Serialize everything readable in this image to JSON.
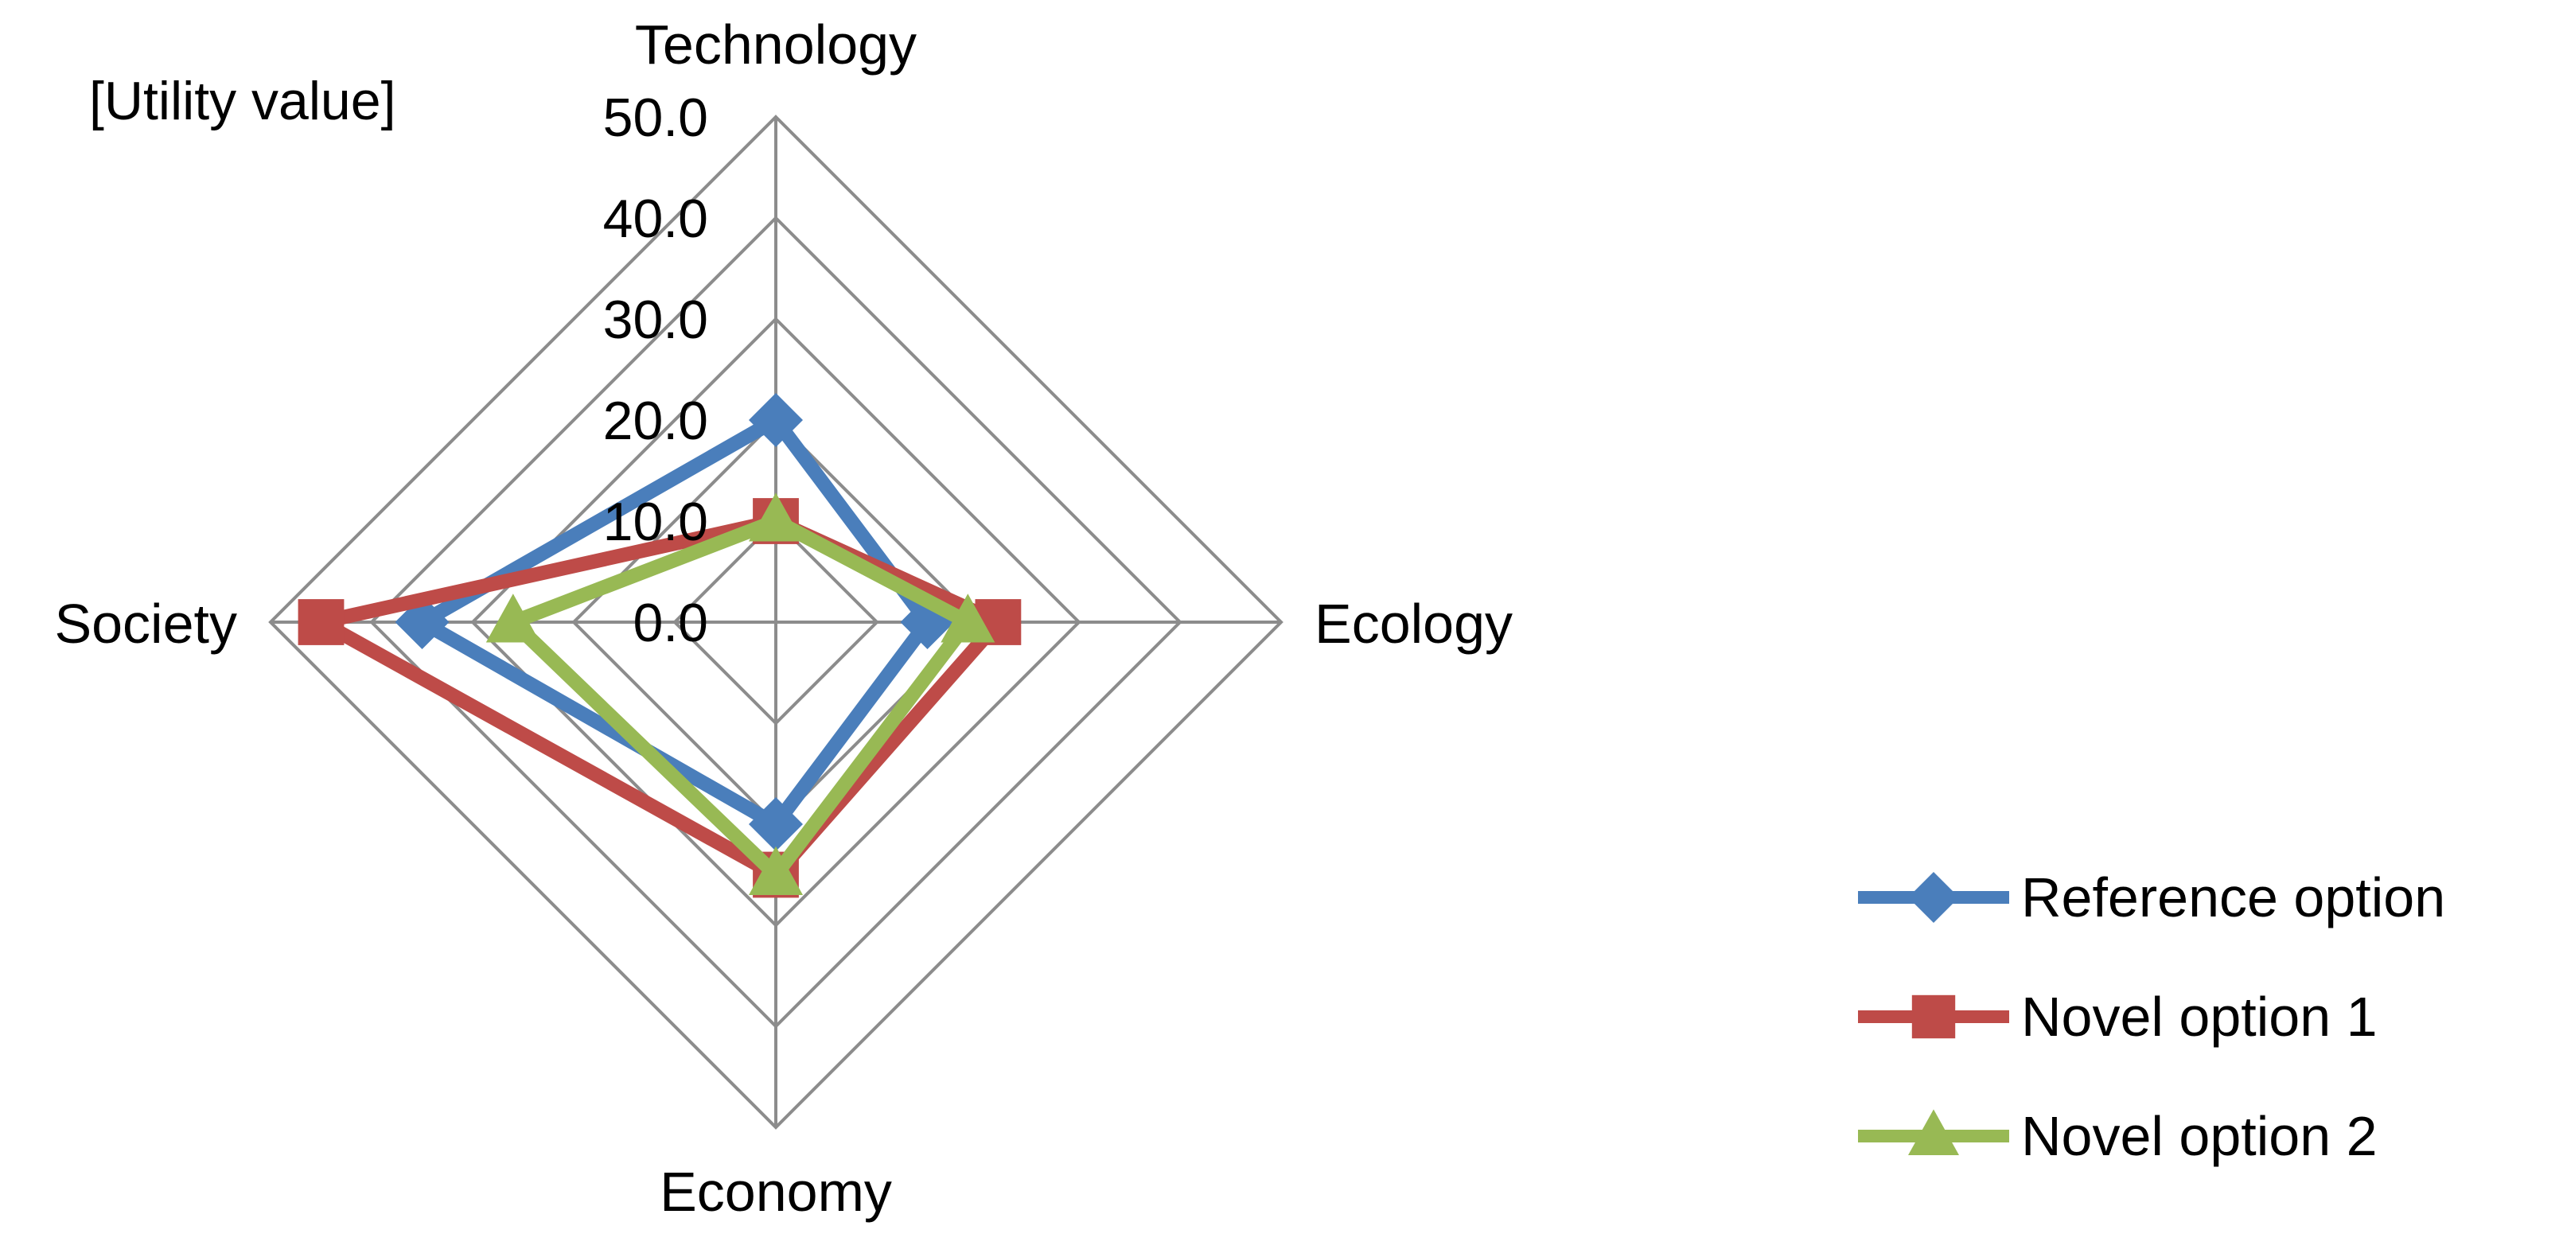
{
  "chart_data": {
    "type": "radar",
    "axis_unit_label": "[Utility value]",
    "categories": [
      "Technology",
      "Ecology",
      "Economy",
      "Society"
    ],
    "rmin": 0,
    "rmax": 50,
    "tick_values": [
      0,
      10,
      20,
      30,
      40,
      50
    ],
    "tick_labels": [
      "0.0",
      "10.0",
      "20.0",
      "30.0",
      "40.0",
      "50.0"
    ],
    "grid": true,
    "legend_position": "bottom-right",
    "series": [
      {
        "name": "Reference option",
        "color": "#4a7ebb",
        "marker": "diamond",
        "values": [
          20,
          15,
          20,
          35
        ]
      },
      {
        "name": "Novel option 1",
        "color": "#be4b48",
        "marker": "square",
        "values": [
          10,
          22,
          25,
          45
        ]
      },
      {
        "name": "Novel option 2",
        "color": "#98b954",
        "marker": "triangle",
        "values": [
          10,
          19,
          25,
          26
        ]
      }
    ]
  }
}
